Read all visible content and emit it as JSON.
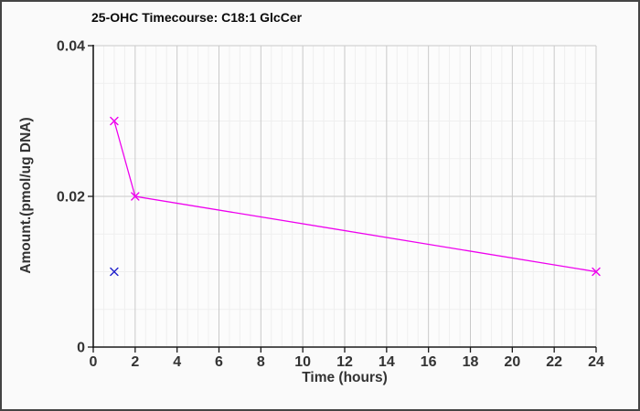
{
  "figure": {
    "title": "25-OHC Timecourse: C18:1 GlcCer"
  },
  "colors": {
    "figure_background": "#fafafa",
    "plot_background": "#fcfcfc",
    "frame_border": "#444444",
    "axis_line": "#1a1a1a",
    "tick_text": "#333333",
    "grid_minor": "#efefef",
    "grid_major": "#c9c9c9",
    "series_magenta": "#ee00ee",
    "series_blue": "#2222cc"
  },
  "chart_data": {
    "type": "line",
    "title": "25-OHC Timecourse: C18:1 GlcCer",
    "xlabel": "Time (hours)",
    "ylabel": "Amount.(pmol/ug DNA)",
    "xlim": [
      0,
      24
    ],
    "ylim": [
      0,
      0.04
    ],
    "x_ticks": [
      0,
      2,
      4,
      6,
      8,
      10,
      12,
      14,
      16,
      18,
      20,
      22,
      24
    ],
    "x_tick_labels": [
      "0",
      "2",
      "4",
      "6",
      "8",
      "10",
      "12",
      "14",
      "16",
      "18",
      "20",
      "22",
      "24"
    ],
    "y_ticks": [
      0,
      0.02,
      0.04
    ],
    "y_tick_labels": [
      "0",
      "0.02",
      "0.04"
    ],
    "x_minor_step": 0.5,
    "y_minor_step": 0.005,
    "grid": true,
    "legend": "none",
    "series": [
      {
        "name": "series-1-magenta-line",
        "color": "#ee00ee",
        "marker": "x",
        "line_style": "solid",
        "x": [
          1,
          2,
          24
        ],
        "y": [
          0.03,
          0.02,
          0.01
        ]
      },
      {
        "name": "series-2-blue-point",
        "color": "#2222cc",
        "marker": "x",
        "line_style": "none",
        "x": [
          1
        ],
        "y": [
          0.01
        ]
      }
    ]
  }
}
